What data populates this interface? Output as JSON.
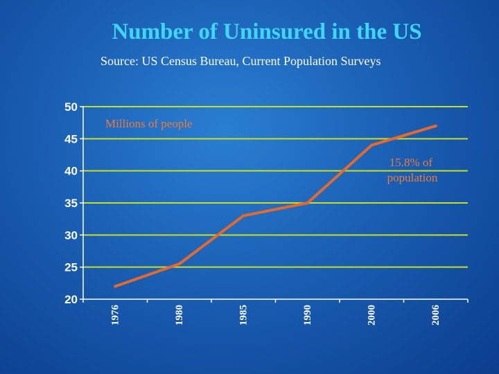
{
  "slide": {
    "title": "Number of Uninsured in the US",
    "subtitle": "Source: US Census Bureau, Current Population Surveys"
  },
  "colors": {
    "title": "#3fd6ff",
    "gridline": "#c8e01e",
    "line": "#e8682a",
    "annotation": "#f07a36"
  },
  "chart_data": {
    "type": "line",
    "title": "",
    "xlabel": "",
    "ylabel": "",
    "ylim": [
      20,
      50
    ],
    "yticks": [
      20,
      25,
      30,
      35,
      40,
      45,
      50
    ],
    "x": [
      "1976",
      "1980",
      "1985",
      "1990",
      "2000",
      "2006"
    ],
    "series": [
      {
        "values": [
          22.0,
          25.5,
          33.0,
          35.0,
          44.0,
          47.0
        ]
      }
    ],
    "annotations": [
      {
        "text": "Millions of people"
      },
      {
        "text": "15.8% of population",
        "lines": [
          "15.8% of",
          "population"
        ]
      }
    ],
    "grid": true
  }
}
